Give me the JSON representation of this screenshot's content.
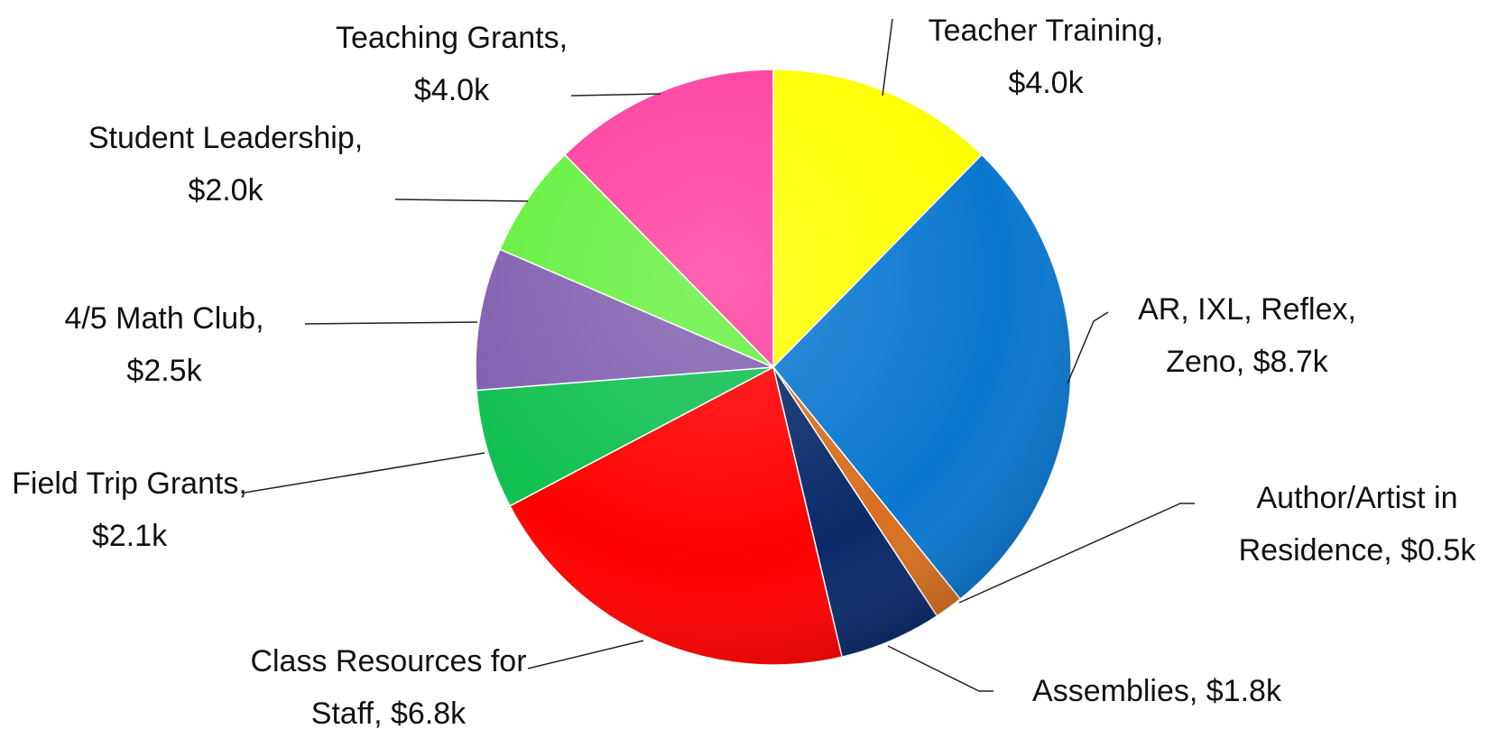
{
  "chart_data": {
    "type": "pie",
    "values": [
      4.0,
      8.7,
      0.5,
      1.8,
      6.8,
      2.1,
      2.5,
      2.0,
      4.0
    ],
    "value_labels": [
      "Teacher Training, $4.0k",
      "AR, IXL, Reflex, Zeno, $8.7k",
      "Author/Artist in Residence, $0.5k",
      "Assemblies, $1.8k",
      "Class Resources for Staff, $6.8k",
      "Field Trip Grants, $2.1k",
      "4/5 Math Club, $2.5k",
      "Student Leadership, $2.0k",
      "Teaching Grants, $4.0k"
    ],
    "colors": [
      "#ffff00",
      "#0a78d0",
      "#d87020",
      "#0a2a6a",
      "#ff0000",
      "#10c050",
      "#8060b0",
      "#66f040",
      "#ff40a0"
    ]
  }
}
